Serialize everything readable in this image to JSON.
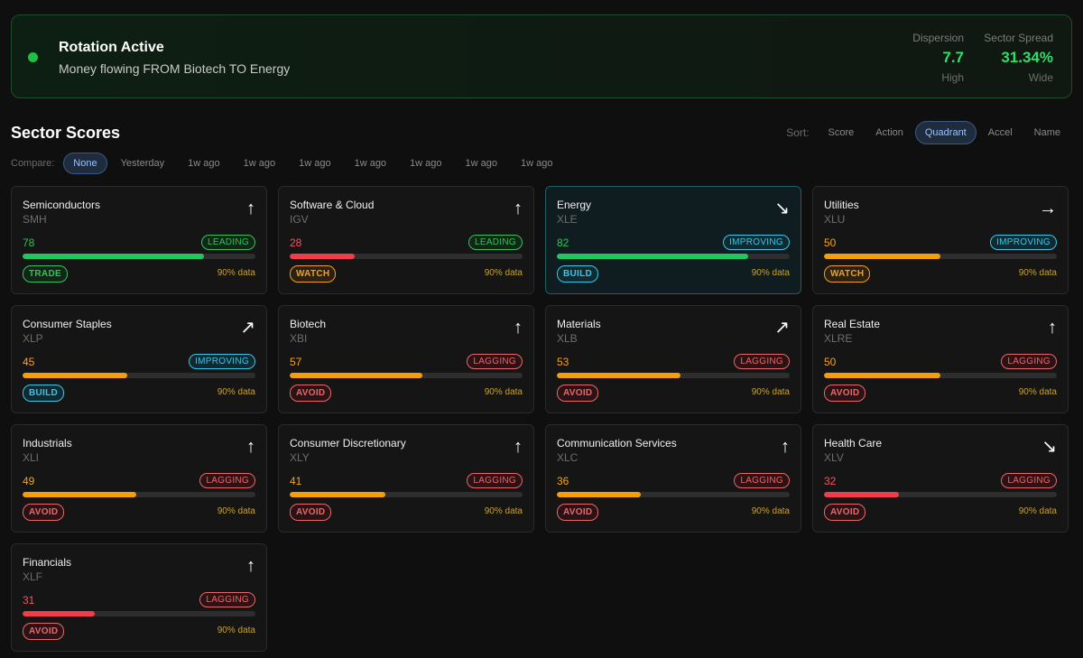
{
  "banner": {
    "title": "Rotation Active",
    "subtitle": "Money flowing FROM Biotech TO Energy",
    "dispersion": {
      "label": "Dispersion",
      "value": "7.7",
      "qualifier": "High"
    },
    "spread": {
      "label": "Sector Spread",
      "value": "31.34%",
      "qualifier": "Wide"
    }
  },
  "section_title": "Sector Scores",
  "sort": {
    "label": "Sort:",
    "options": [
      "Score",
      "Action",
      "Quadrant",
      "Accel",
      "Name"
    ],
    "selected": "Quadrant"
  },
  "compare": {
    "label": "Compare:",
    "options": [
      "None",
      "Yesterday",
      "1w ago",
      "1w ago",
      "1w ago",
      "1w ago",
      "1w ago",
      "1w ago",
      "1w ago"
    ],
    "selected": "None"
  },
  "cards": [
    {
      "name": "Semiconductors",
      "ticker": "SMH",
      "score": 78,
      "score_label": "78",
      "quadrant": "LEADING",
      "action": "TRADE",
      "coverage": "90% data",
      "arrow": "↑",
      "color": "green"
    },
    {
      "name": "Software & Cloud",
      "ticker": "IGV",
      "score": 28,
      "score_label": "28",
      "quadrant": "LEADING",
      "action": "WATCH",
      "coverage": "90% data",
      "arrow": "↑",
      "color": "red"
    },
    {
      "name": "Energy",
      "ticker": "XLE",
      "score": 82,
      "score_label": "82",
      "quadrant": "IMPROVING",
      "action": "BUILD",
      "coverage": "90% data",
      "arrow": "↘",
      "color": "green",
      "highlight": true
    },
    {
      "name": "Utilities",
      "ticker": "XLU",
      "score": 50,
      "score_label": "50",
      "quadrant": "IMPROVING",
      "action": "WATCH",
      "coverage": "90% data",
      "arrow": "→",
      "color": "orange"
    },
    {
      "name": "Consumer Staples",
      "ticker": "XLP",
      "score": 45,
      "score_label": "45",
      "quadrant": "IMPROVING",
      "action": "BUILD",
      "coverage": "90% data",
      "arrow": "↗",
      "color": "orange"
    },
    {
      "name": "Biotech",
      "ticker": "XBI",
      "score": 57,
      "score_label": "57",
      "quadrant": "LAGGING",
      "action": "AVOID",
      "coverage": "90% data",
      "arrow": "↑",
      "color": "orange"
    },
    {
      "name": "Materials",
      "ticker": "XLB",
      "score": 53,
      "score_label": "53",
      "quadrant": "LAGGING",
      "action": "AVOID",
      "coverage": "90% data",
      "arrow": "↗",
      "color": "orange"
    },
    {
      "name": "Real Estate",
      "ticker": "XLRE",
      "score": 50,
      "score_label": "50",
      "quadrant": "LAGGING",
      "action": "AVOID",
      "coverage": "90% data",
      "arrow": "↑",
      "color": "orange"
    },
    {
      "name": "Industrials",
      "ticker": "XLI",
      "score": 49,
      "score_label": "49",
      "quadrant": "LAGGING",
      "action": "AVOID",
      "coverage": "90% data",
      "arrow": "↑",
      "color": "orange"
    },
    {
      "name": "Consumer Discretionary",
      "ticker": "XLY",
      "score": 41,
      "score_label": "41",
      "quadrant": "LAGGING",
      "action": "AVOID",
      "coverage": "90% data",
      "arrow": "↑",
      "color": "orange"
    },
    {
      "name": "Communication Services",
      "ticker": "XLC",
      "score": 36,
      "score_label": "36",
      "quadrant": "LAGGING",
      "action": "AVOID",
      "coverage": "90% data",
      "arrow": "↑",
      "color": "orange"
    },
    {
      "name": "Health Care",
      "ticker": "XLV",
      "score": 32,
      "score_label": "32",
      "quadrant": "LAGGING",
      "action": "AVOID",
      "coverage": "90% data",
      "arrow": "↘",
      "color": "red"
    },
    {
      "name": "Financials",
      "ticker": "XLF",
      "score": 31,
      "score_label": "31",
      "quadrant": "LAGGING",
      "action": "AVOID",
      "coverage": "90% data",
      "arrow": "↑",
      "color": "red"
    }
  ]
}
